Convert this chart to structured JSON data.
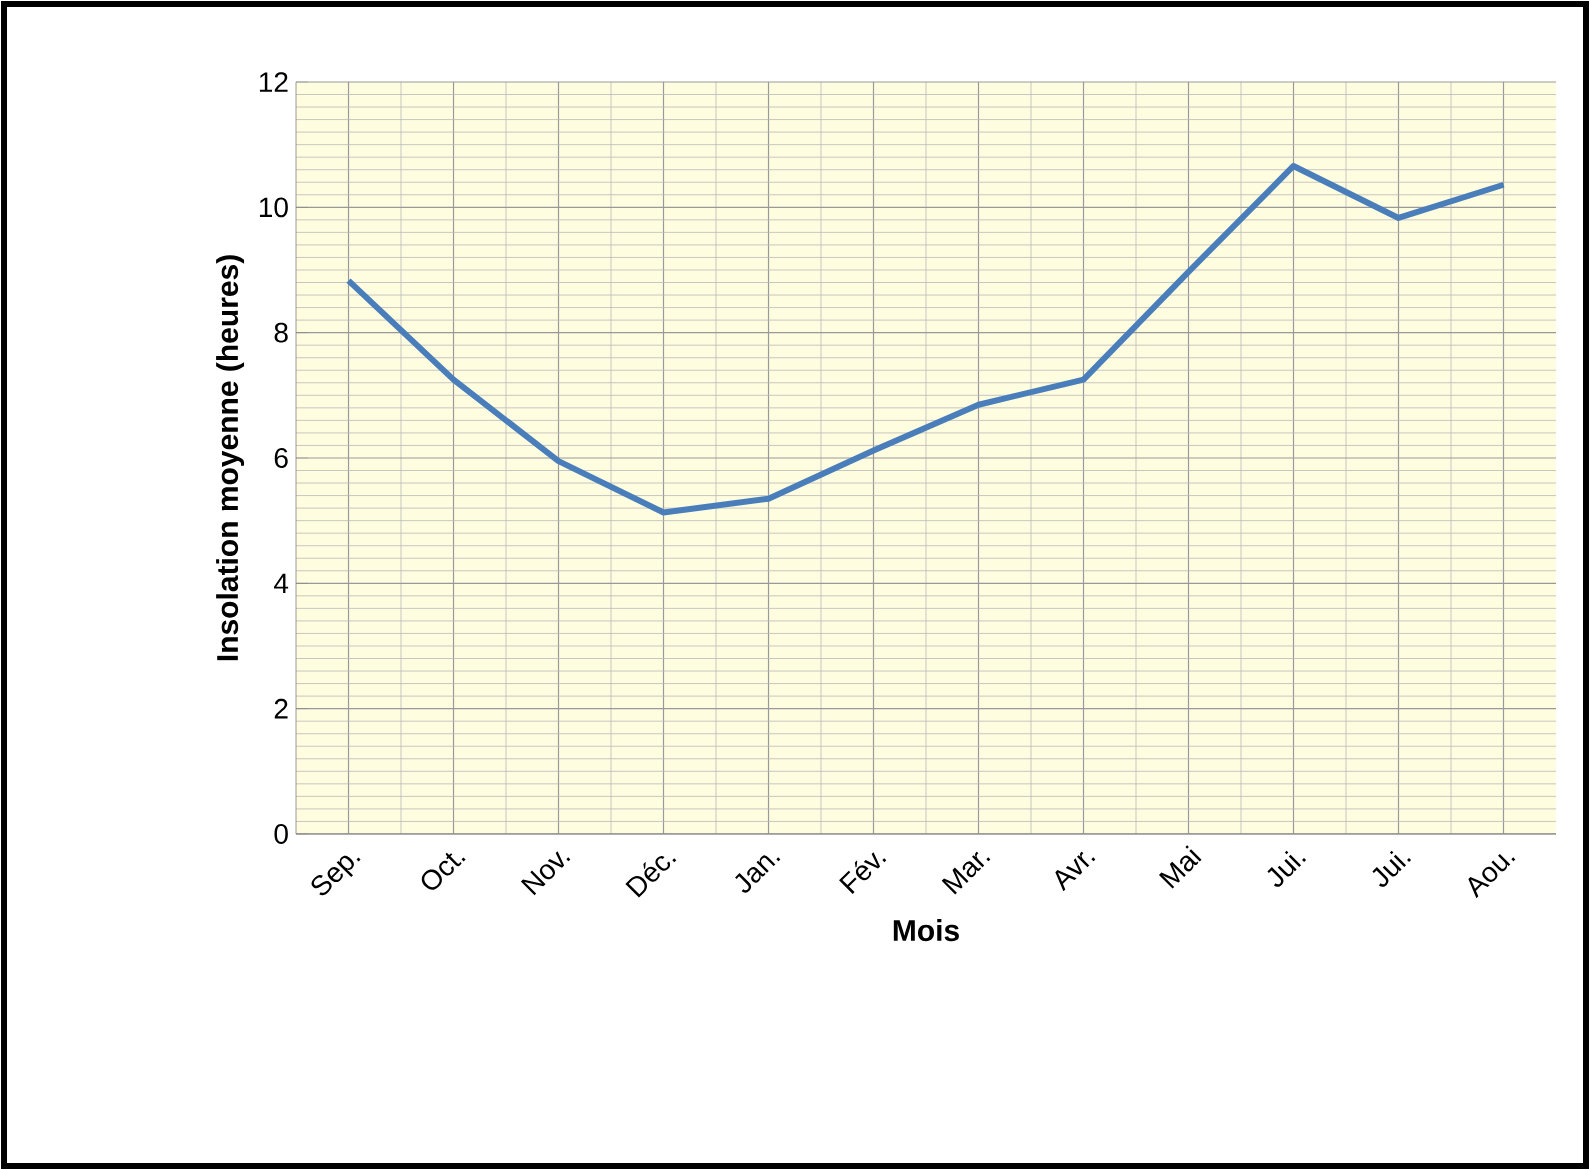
{
  "chart_data": {
    "type": "line",
    "xlabel": "Mois",
    "ylabel": "Insolation moyenne (heures)",
    "categories": [
      "Sep.",
      "Oct.",
      "Nov.",
      "Déc.",
      "Jan.",
      "Fév.",
      "Mar.",
      "Avr.",
      "Mai",
      "Jui.",
      "Jui.",
      "Aou."
    ],
    "series": [
      {
        "color": "#4a7ebb",
        "values": [
          8.83,
          7.25,
          5.95,
          5.13,
          5.35,
          6.12,
          6.85,
          7.25,
          8.97,
          10.66,
          9.83,
          10.36
        ]
      }
    ],
    "ylim": [
      0,
      12
    ],
    "yticks": [
      0,
      2,
      4,
      6,
      8,
      10,
      12
    ],
    "grid": true,
    "marker": "none",
    "line_style": "solid"
  }
}
